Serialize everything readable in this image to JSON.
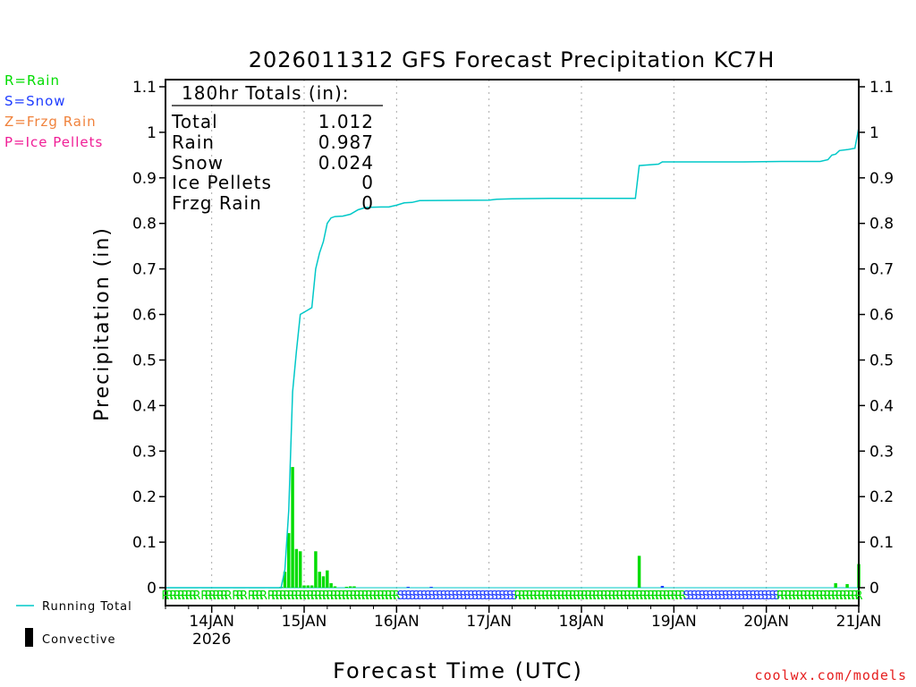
{
  "chart_data": {
    "type": "bar+line",
    "title": "2026011312 GFS Forecast Precipitation KC7H",
    "xlabel": "Forecast Time (UTC)",
    "ylabel": "Precipitation (in)",
    "ylim": [
      0,
      1.1
    ],
    "xlim_hours": [
      0,
      180
    ],
    "y_ticks": [
      "0",
      "0.1",
      "0.2",
      "0.3",
      "0.4",
      "0.5",
      "0.6",
      "0.7",
      "0.8",
      "0.9",
      "1",
      "1.1"
    ],
    "x_ticks": [
      {
        "hour": 12,
        "label": "14JAN",
        "sub": "2026"
      },
      {
        "hour": 36,
        "label": "15JAN",
        "sub": ""
      },
      {
        "hour": 60,
        "label": "16JAN",
        "sub": ""
      },
      {
        "hour": 84,
        "label": "17JAN",
        "sub": ""
      },
      {
        "hour": 108,
        "label": "18JAN",
        "sub": ""
      },
      {
        "hour": 132,
        "label": "19JAN",
        "sub": ""
      },
      {
        "hour": 156,
        "label": "20JAN",
        "sub": ""
      },
      {
        "hour": 180,
        "label": "21JAN",
        "sub": ""
      }
    ],
    "totals": {
      "header": "180hr Totals (in):",
      "rows": [
        {
          "label": "Total",
          "value": "1.012"
        },
        {
          "label": "Rain",
          "value": "0.987"
        },
        {
          "label": "Snow",
          "value": "0.024"
        },
        {
          "label": "Ice Pellets",
          "value": "0"
        },
        {
          "label": "Frzg Rain",
          "value": "0"
        }
      ]
    },
    "type_legend": [
      {
        "label": "R=Rain",
        "color": "#00dc00"
      },
      {
        "label": "S=Snow",
        "color": "#1e3cff"
      },
      {
        "label": "Z=Frzg Rain",
        "color": "#f0823c"
      },
      {
        "label": "P=Ice Pellets",
        "color": "#f01e96"
      }
    ],
    "series_legend": {
      "running_total": "Running Total",
      "convective": "Convective"
    },
    "colors": {
      "rain": "#00dc00",
      "snow": "#1e3cff",
      "running_total": "#00c8c8",
      "grid": "#aaaaaa"
    },
    "bars": [
      {
        "hour": 30,
        "value": 0.002,
        "type": "R"
      },
      {
        "hour": 31,
        "value": 0.035,
        "type": "R"
      },
      {
        "hour": 32,
        "value": 0.12,
        "type": "R"
      },
      {
        "hour": 33,
        "value": 0.265,
        "type": "R"
      },
      {
        "hour": 34,
        "value": 0.085,
        "type": "R"
      },
      {
        "hour": 35,
        "value": 0.08,
        "type": "R"
      },
      {
        "hour": 36,
        "value": 0.005,
        "type": "R"
      },
      {
        "hour": 37,
        "value": 0.005,
        "type": "R"
      },
      {
        "hour": 38,
        "value": 0.005,
        "type": "R"
      },
      {
        "hour": 39,
        "value": 0.08,
        "type": "R"
      },
      {
        "hour": 40,
        "value": 0.035,
        "type": "R"
      },
      {
        "hour": 41,
        "value": 0.025,
        "type": "R"
      },
      {
        "hour": 42,
        "value": 0.038,
        "type": "R"
      },
      {
        "hour": 43,
        "value": 0.01,
        "type": "R"
      },
      {
        "hour": 44,
        "value": 0.003,
        "type": "R"
      },
      {
        "hour": 47,
        "value": 0.002,
        "type": "R"
      },
      {
        "hour": 48,
        "value": 0.003,
        "type": "R"
      },
      {
        "hour": 49,
        "value": 0.003,
        "type": "R"
      },
      {
        "hour": 63,
        "value": 0.002,
        "type": "S"
      },
      {
        "hour": 69,
        "value": 0.002,
        "type": "S"
      },
      {
        "hour": 123,
        "value": 0.07,
        "type": "R"
      },
      {
        "hour": 129,
        "value": 0.004,
        "type": "S"
      },
      {
        "hour": 174,
        "value": 0.01,
        "type": "R"
      },
      {
        "hour": 177,
        "value": 0.008,
        "type": "R"
      },
      {
        "hour": 180,
        "value": 0.052,
        "type": "R"
      }
    ],
    "running_total": [
      [
        0,
        0
      ],
      [
        30,
        0
      ],
      [
        31,
        0.04
      ],
      [
        32,
        0.17
      ],
      [
        33,
        0.43
      ],
      [
        34,
        0.52
      ],
      [
        35,
        0.6
      ],
      [
        36,
        0.605
      ],
      [
        37,
        0.61
      ],
      [
        38,
        0.615
      ],
      [
        39,
        0.7
      ],
      [
        40,
        0.735
      ],
      [
        41,
        0.76
      ],
      [
        42,
        0.8
      ],
      [
        43,
        0.812
      ],
      [
        44,
        0.815
      ],
      [
        46,
        0.816
      ],
      [
        48,
        0.82
      ],
      [
        50,
        0.83
      ],
      [
        52,
        0.835
      ],
      [
        56,
        0.836
      ],
      [
        58,
        0.836
      ],
      [
        60,
        0.84
      ],
      [
        62,
        0.845
      ],
      [
        64,
        0.846
      ],
      [
        66,
        0.85
      ],
      [
        84,
        0.851
      ],
      [
        86,
        0.853
      ],
      [
        90,
        0.854
      ],
      [
        100,
        0.855
      ],
      [
        122,
        0.855
      ],
      [
        123,
        0.927
      ],
      [
        128,
        0.93
      ],
      [
        129,
        0.935
      ],
      [
        150,
        0.935
      ],
      [
        160,
        0.936
      ],
      [
        170,
        0.936
      ],
      [
        172,
        0.94
      ],
      [
        173,
        0.95
      ],
      [
        174,
        0.952
      ],
      [
        175,
        0.96
      ],
      [
        177,
        0.962
      ],
      [
        179,
        0.965
      ],
      [
        180,
        1.01
      ]
    ],
    "precip_type_row": [
      "R",
      "R",
      "R",
      "R",
      "R",
      "R",
      "R",
      "R",
      "R",
      "",
      "R",
      "R",
      "R",
      "R",
      "R",
      "R",
      "R",
      "",
      "R",
      "R",
      "R",
      "",
      "R",
      "R",
      "R",
      "R",
      "",
      "R",
      "R",
      "R",
      "R",
      "R",
      "R",
      "R",
      "R",
      "R",
      "R",
      "R",
      "R",
      "R",
      "R",
      "R",
      "R",
      "R",
      "R",
      "R",
      "R",
      "R",
      "R",
      "R",
      "R",
      "R",
      "R",
      "R",
      "R",
      "R",
      "R",
      "R",
      "R",
      "R",
      "S",
      "S",
      "S",
      "S",
      "S",
      "S",
      "S",
      "S",
      "S",
      "S",
      "S",
      "S",
      "S",
      "S",
      "S",
      "S",
      "S",
      "S",
      "S",
      "S",
      "S",
      "S",
      "S",
      "S",
      "S",
      "S",
      "S",
      "S",
      "S",
      "S",
      "R",
      "R",
      "R",
      "R",
      "R",
      "R",
      "R",
      "R",
      "R",
      "R",
      "R",
      "R",
      "R",
      "R",
      "R",
      "R",
      "R",
      "R",
      "R",
      "R",
      "R",
      "R",
      "R",
      "R",
      "R",
      "R",
      "R",
      "R",
      "R",
      "R",
      "R",
      "R",
      "R",
      "R",
      "R",
      "R",
      "R",
      "R",
      "R",
      "R",
      "R",
      "R",
      "R",
      "S",
      "S",
      "S",
      "S",
      "S",
      "S",
      "S",
      "S",
      "S",
      "S",
      "S",
      "S",
      "S",
      "S",
      "S",
      "S",
      "S",
      "S",
      "S",
      "S",
      "S",
      "S",
      "S",
      "S",
      "R",
      "R",
      "R",
      "R",
      "R",
      "R",
      "R",
      "R",
      "R",
      "R",
      "R",
      "R",
      "R",
      "R",
      "R",
      "R",
      "R",
      "R",
      "R",
      "R",
      "R"
    ]
  },
  "credit": "coolwx.com/models"
}
